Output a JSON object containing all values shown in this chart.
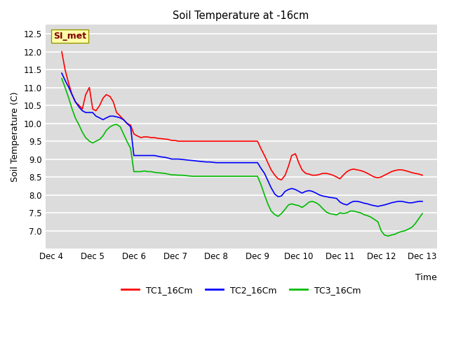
{
  "title": "Soil Temperature at -16cm",
  "xlabel": "Time",
  "ylabel": "Soil Temperature (C)",
  "ylim": [
    6.5,
    12.75
  ],
  "yticks": [
    7.0,
    7.5,
    8.0,
    8.5,
    9.0,
    9.5,
    10.0,
    10.5,
    11.0,
    11.5,
    12.0,
    12.5
  ],
  "bg_color": "#dcdcdc",
  "fig_color": "#ffffff",
  "plot_bg_color": "#dcdcdc",
  "watermark_text": "SI_met",
  "watermark_bg": "#ffffaa",
  "watermark_fg": "#800000",
  "TC1_16Cm": {
    "color": "#ff0000",
    "x": [
      0.25,
      0.33,
      0.42,
      0.5,
      0.58,
      0.67,
      0.75,
      0.83,
      0.92,
      1.0,
      1.08,
      1.17,
      1.25,
      1.33,
      1.42,
      1.5,
      1.58,
      1.67,
      1.75,
      1.83,
      1.92,
      2.0,
      2.08,
      2.17,
      2.25,
      2.33,
      2.42,
      2.5,
      2.58,
      2.67,
      2.75,
      2.83,
      2.92,
      3.0,
      3.08,
      3.17,
      3.25,
      3.33,
      3.42,
      3.5,
      3.58,
      3.67,
      3.75,
      3.83,
      3.92,
      4.0,
      4.08,
      4.17,
      4.25,
      4.33,
      4.42,
      4.5,
      4.58,
      4.67,
      4.75,
      4.83,
      4.92,
      5.0,
      5.08,
      5.17,
      5.25,
      5.33,
      5.42,
      5.5,
      5.58,
      5.67,
      5.75,
      5.83,
      5.92,
      6.0,
      6.08,
      6.17,
      6.25,
      6.33,
      6.42,
      6.5,
      6.58,
      6.67,
      6.75,
      6.83,
      6.92,
      7.0,
      7.08,
      7.17,
      7.25,
      7.33,
      7.42,
      7.5,
      7.58,
      7.67,
      7.75,
      7.83,
      7.92,
      8.0,
      8.08,
      8.17,
      8.25,
      8.33,
      8.42,
      8.5,
      8.58,
      8.67,
      8.75,
      8.83,
      8.92,
      9.0
    ],
    "y": [
      12.0,
      11.5,
      11.1,
      10.8,
      10.6,
      10.5,
      10.4,
      10.8,
      11.0,
      10.4,
      10.35,
      10.5,
      10.7,
      10.8,
      10.75,
      10.6,
      10.3,
      10.2,
      10.1,
      10.0,
      9.95,
      9.7,
      9.65,
      9.6,
      9.62,
      9.62,
      9.6,
      9.6,
      9.58,
      9.57,
      9.56,
      9.55,
      9.52,
      9.52,
      9.5,
      9.5,
      9.5,
      9.5,
      9.5,
      9.5,
      9.5,
      9.5,
      9.5,
      9.5,
      9.5,
      9.5,
      9.5,
      9.5,
      9.5,
      9.5,
      9.5,
      9.5,
      9.5,
      9.5,
      9.5,
      9.5,
      9.5,
      9.5,
      9.3,
      9.1,
      8.9,
      8.7,
      8.55,
      8.45,
      8.42,
      8.55,
      8.8,
      9.1,
      9.15,
      8.9,
      8.7,
      8.6,
      8.58,
      8.55,
      8.55,
      8.57,
      8.6,
      8.6,
      8.58,
      8.55,
      8.5,
      8.45,
      8.55,
      8.65,
      8.7,
      8.72,
      8.7,
      8.68,
      8.65,
      8.6,
      8.55,
      8.5,
      8.48,
      8.5,
      8.55,
      8.6,
      8.65,
      8.68,
      8.7,
      8.7,
      8.68,
      8.65,
      8.62,
      8.6,
      8.58,
      8.55
    ]
  },
  "TC2_16Cm": {
    "color": "#0000ff",
    "x": [
      0.25,
      0.33,
      0.42,
      0.5,
      0.58,
      0.67,
      0.75,
      0.83,
      0.92,
      1.0,
      1.08,
      1.17,
      1.25,
      1.33,
      1.42,
      1.5,
      1.58,
      1.67,
      1.75,
      1.83,
      1.92,
      2.0,
      2.08,
      2.17,
      2.25,
      2.33,
      2.42,
      2.5,
      2.58,
      2.67,
      2.75,
      2.83,
      2.92,
      3.0,
      3.08,
      3.17,
      3.25,
      3.33,
      3.42,
      3.5,
      3.58,
      3.67,
      3.75,
      3.83,
      3.92,
      4.0,
      4.08,
      4.17,
      4.25,
      4.33,
      4.42,
      4.5,
      4.58,
      4.67,
      4.75,
      4.83,
      4.92,
      5.0,
      5.08,
      5.17,
      5.25,
      5.33,
      5.42,
      5.5,
      5.58,
      5.67,
      5.75,
      5.83,
      5.92,
      6.0,
      6.08,
      6.17,
      6.25,
      6.33,
      6.42,
      6.5,
      6.58,
      6.67,
      6.75,
      6.83,
      6.92,
      7.0,
      7.08,
      7.17,
      7.25,
      7.33,
      7.42,
      7.5,
      7.58,
      7.67,
      7.75,
      7.83,
      7.92,
      8.0,
      8.08,
      8.17,
      8.25,
      8.33,
      8.42,
      8.5,
      8.58,
      8.67,
      8.75,
      8.83,
      8.92,
      9.0
    ],
    "y": [
      11.4,
      11.2,
      11.0,
      10.8,
      10.6,
      10.45,
      10.35,
      10.3,
      10.3,
      10.3,
      10.2,
      10.15,
      10.1,
      10.15,
      10.2,
      10.2,
      10.18,
      10.15,
      10.1,
      10.0,
      9.9,
      9.1,
      9.1,
      9.1,
      9.1,
      9.1,
      9.1,
      9.1,
      9.08,
      9.06,
      9.05,
      9.03,
      9.0,
      9.0,
      9.0,
      8.99,
      8.98,
      8.97,
      8.96,
      8.95,
      8.94,
      8.93,
      8.92,
      8.92,
      8.91,
      8.9,
      8.9,
      8.9,
      8.9,
      8.9,
      8.9,
      8.9,
      8.9,
      8.9,
      8.9,
      8.9,
      8.9,
      8.9,
      8.75,
      8.6,
      8.4,
      8.2,
      8.02,
      7.95,
      7.97,
      8.1,
      8.15,
      8.18,
      8.15,
      8.1,
      8.05,
      8.1,
      8.12,
      8.1,
      8.05,
      8.0,
      7.97,
      7.95,
      7.93,
      7.92,
      7.9,
      7.8,
      7.75,
      7.72,
      7.78,
      7.82,
      7.82,
      7.8,
      7.77,
      7.75,
      7.72,
      7.7,
      7.68,
      7.7,
      7.72,
      7.75,
      7.78,
      7.8,
      7.82,
      7.82,
      7.8,
      7.78,
      7.78,
      7.8,
      7.82,
      7.82
    ]
  },
  "TC3_16Cm": {
    "color": "#00bb00",
    "x": [
      0.25,
      0.33,
      0.42,
      0.5,
      0.58,
      0.67,
      0.75,
      0.83,
      0.92,
      1.0,
      1.08,
      1.17,
      1.25,
      1.33,
      1.42,
      1.5,
      1.58,
      1.67,
      1.75,
      1.83,
      1.92,
      2.0,
      2.08,
      2.17,
      2.25,
      2.33,
      2.42,
      2.5,
      2.58,
      2.67,
      2.75,
      2.83,
      2.92,
      3.0,
      3.08,
      3.17,
      3.25,
      3.33,
      3.42,
      3.5,
      3.58,
      3.67,
      3.75,
      3.83,
      3.92,
      4.0,
      4.08,
      4.17,
      4.25,
      4.33,
      4.42,
      4.5,
      4.58,
      4.67,
      4.75,
      4.83,
      4.92,
      5.0,
      5.08,
      5.17,
      5.25,
      5.33,
      5.42,
      5.5,
      5.58,
      5.67,
      5.75,
      5.83,
      5.92,
      6.0,
      6.08,
      6.17,
      6.25,
      6.33,
      6.42,
      6.5,
      6.58,
      6.67,
      6.75,
      6.83,
      6.92,
      7.0,
      7.08,
      7.17,
      7.25,
      7.33,
      7.42,
      7.5,
      7.58,
      7.67,
      7.75,
      7.83,
      7.92,
      8.0,
      8.08,
      8.17,
      8.25,
      8.33,
      8.42,
      8.5,
      8.58,
      8.67,
      8.75,
      8.83,
      8.92,
      9.0
    ],
    "y": [
      11.25,
      11.0,
      10.7,
      10.4,
      10.15,
      9.95,
      9.75,
      9.6,
      9.5,
      9.45,
      9.5,
      9.55,
      9.65,
      9.8,
      9.9,
      9.95,
      9.97,
      9.9,
      9.7,
      9.5,
      9.3,
      8.65,
      8.65,
      8.65,
      8.67,
      8.65,
      8.65,
      8.63,
      8.62,
      8.61,
      8.6,
      8.58,
      8.56,
      8.56,
      8.55,
      8.55,
      8.54,
      8.53,
      8.52,
      8.52,
      8.52,
      8.52,
      8.52,
      8.52,
      8.52,
      8.52,
      8.52,
      8.52,
      8.52,
      8.52,
      8.52,
      8.52,
      8.52,
      8.52,
      8.52,
      8.52,
      8.52,
      8.52,
      8.3,
      8.0,
      7.75,
      7.55,
      7.45,
      7.4,
      7.48,
      7.6,
      7.72,
      7.75,
      7.72,
      7.7,
      7.65,
      7.72,
      7.8,
      7.82,
      7.78,
      7.72,
      7.62,
      7.52,
      7.48,
      7.46,
      7.44,
      7.5,
      7.48,
      7.5,
      7.55,
      7.55,
      7.52,
      7.5,
      7.45,
      7.42,
      7.38,
      7.32,
      7.25,
      7.0,
      6.88,
      6.85,
      6.88,
      6.9,
      6.95,
      6.98,
      7.0,
      7.05,
      7.1,
      7.2,
      7.35,
      7.48
    ]
  },
  "xtick_positions": [
    0,
    1,
    2,
    3,
    4,
    5,
    6,
    7,
    8,
    9
  ],
  "xtick_labels": [
    "Dec 4",
    "Dec 5",
    "Dec 6",
    "Dec 7",
    "Dec 8",
    "Dec 9",
    "Dec 10",
    "Dec 11",
    "Dec 12",
    "Dec 13"
  ],
  "legend_labels": [
    "TC1_16Cm",
    "TC2_16Cm",
    "TC3_16Cm"
  ],
  "legend_colors": [
    "#ff0000",
    "#0000ff",
    "#00bb00"
  ]
}
